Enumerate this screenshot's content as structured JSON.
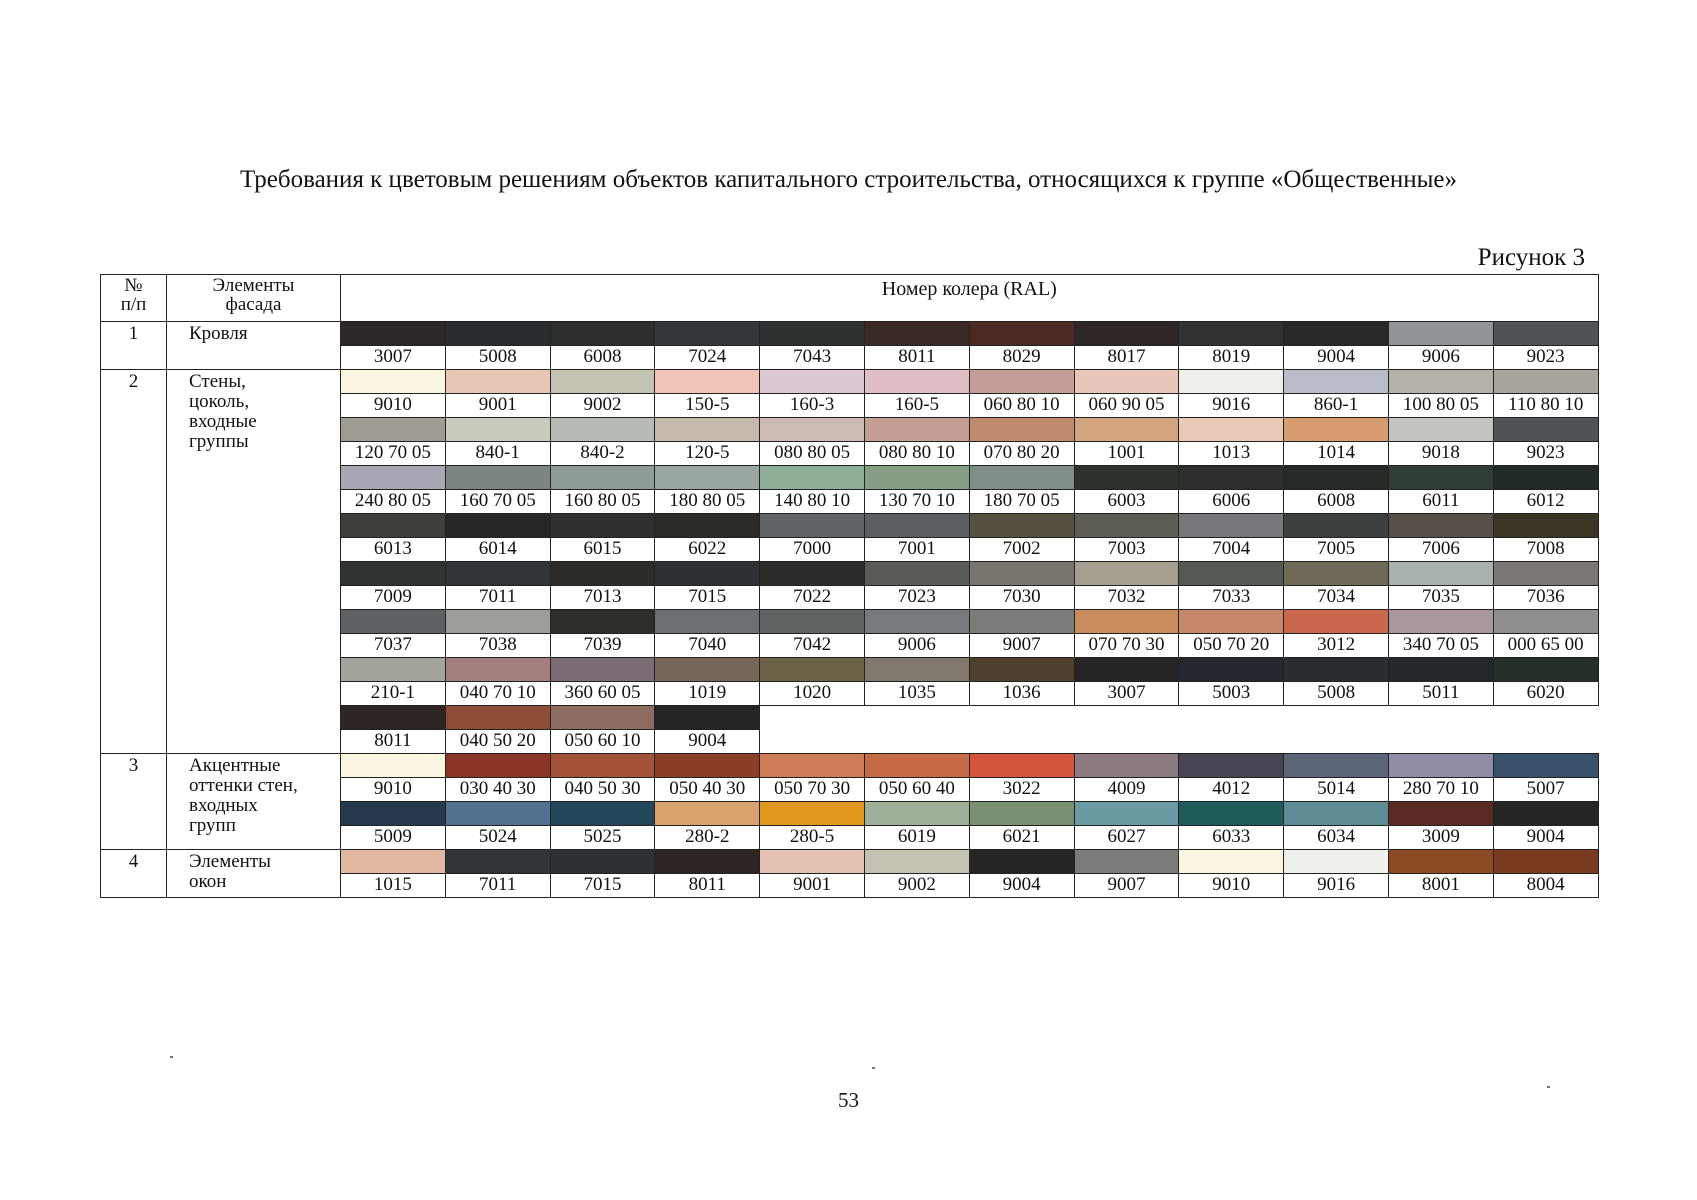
{
  "title": "Требования к цветовым решениям объектов капитального строительства, относящихся к группе «Общественные»",
  "figure_label": "Рисунок 3",
  "table": {
    "headers": {
      "num": "№\nп/п",
      "elements": "Элементы\nфасада",
      "ral": "Номер колера (RAL)"
    },
    "groups": [
      {
        "num": "1",
        "element": "Кровля",
        "rows": [
          {
            "codes": [
              "3007",
              "5008",
              "6008",
              "7024",
              "7043",
              "8011",
              "8029",
              "8017",
              "8019",
              "9004",
              "9006",
              "9023"
            ],
            "colors": [
              "#2c2626",
              "#2a2d30",
              "#2b2e2c",
              "#33363a",
              "#2e3132",
              "#3a2a26",
              "#4b2a24",
              "#2e2624",
              "#303133",
              "#282828",
              "#8f9497",
              "#4f5356"
            ]
          }
        ]
      },
      {
        "num": "2",
        "element": "Стены,\nцоколь,\nвходные\nгруппы",
        "rows": [
          {
            "codes": [
              "9010",
              "9001",
              "9002",
              "150-5",
              "160-3",
              "160-5",
              "060 80 10",
              "060 90 05",
              "9016",
              "860-1",
              "100 80 05",
              "110 80 10"
            ],
            "colors": [
              "#fbf6e2",
              "#e8c6b6",
              "#c4c2b3",
              "#f0c4b8",
              "#dbc8d3",
              "#e0bfc4",
              "#c59e98",
              "#e9c6b9",
              "#eef0ec",
              "#b9bcc9",
              "#b5b1a8",
              "#a8a59c"
            ]
          },
          {
            "codes": [
              "120 70 05",
              "840-1",
              "840-2",
              "120-5",
              "080 80 05",
              "080 80 10",
              "070 80 20",
              "1001",
              "1013",
              "1014",
              "9018",
              "9023"
            ],
            "colors": [
              "#9f9d93",
              "#c8ccbf",
              "#b7bcb5",
              "#c4b9ac",
              "#cdbab5",
              "#c59f93",
              "#c18b6f",
              "#d2a47f",
              "#e8c9b8",
              "#d79c6f",
              "#c3c6bf",
              "#4f5356"
            ]
          },
          {
            "codes": [
              "240 80 05",
              "160 70 05",
              "160 80 05",
              "180 80 05",
              "140 80 10",
              "130 70 10",
              "180 70 05",
              "6003",
              "6006",
              "6008",
              "6011",
              "6012"
            ],
            "colors": [
              "#a7a8b3",
              "#7d8581",
              "#8f9d98",
              "#9aa6a3",
              "#8fae98",
              "#869e86",
              "#7f8e86",
              "#2c332c",
              "#2c2f2c",
              "#262a27",
              "#2f3e32",
              "#222a27"
            ]
          },
          {
            "codes": [
              "6013",
              "6014",
              "6015",
              "6022",
              "7000",
              "7001",
              "7002",
              "7003",
              "7004",
              "7005",
              "7006",
              "7008"
            ],
            "colors": [
              "#3c4038",
              "#272725",
              "#2e312d",
              "#2c2a26",
              "#5e6468",
              "#5b5f62",
              "#55503f",
              "#5d5c55",
              "#76777a",
              "#3c403e",
              "#575048",
              "#3b3526"
            ]
          },
          {
            "codes": [
              "7009",
              "7011",
              "7013",
              "7015",
              "7022",
              "7023",
              "7030",
              "7032",
              "7033",
              "7034",
              "7035",
              "7036"
            ],
            "colors": [
              "#2f3431",
              "#303538",
              "#2d2c29",
              "#2e3134",
              "#2c2d2b",
              "#595c56",
              "#78766f",
              "#a59e91",
              "#535a51",
              "#6f6a58",
              "#a8b1ad",
              "#7c7775"
            ]
          },
          {
            "codes": [
              "7037",
              "7038",
              "7039",
              "7040",
              "7042",
              "9006",
              "9007",
              "070 70 30",
              "050 70 20",
              "3012",
              "340 70 05",
              "000 65 00"
            ],
            "colors": [
              "#5d6163",
              "#9c9e98",
              "#2f2d29",
              "#6b6f73",
              "#5f6364",
              "#767a7c",
              "#7b7c79",
              "#c98c5d",
              "#c7876a",
              "#c9674f",
              "#a9969e",
              "#8e8e8e"
            ]
          },
          {
            "codes": [
              "210-1",
              "040 70 10",
              "360 60 05",
              "1019",
              "1020",
              "1035",
              "1036",
              "3007",
              "5003",
              "5008",
              "5011",
              "6020"
            ],
            "colors": [
              "#a3a59d",
              "#a37e7c",
              "#7b6b74",
              "#75655a",
              "#6b6247",
              "#80786d",
              "#4d412d",
              "#262424",
              "#23282f",
              "#2a2d30",
              "#23282c",
              "#253029"
            ]
          },
          {
            "codes": [
              "8011",
              "040 50 20",
              "050 60 10",
              "9004"
            ],
            "colors": [
              "#2d2521",
              "#8d4d37",
              "#8f6c62",
              "#252525"
            ]
          }
        ]
      },
      {
        "num": "3",
        "element": "Акцентные\nоттенки стен,\nвходных\nгрупп",
        "rows": [
          {
            "codes": [
              "9010",
              "030 40 30",
              "040 50 30",
              "050 40 30",
              "050 70 30",
              "050 60 40",
              "3022",
              "4009",
              "4012",
              "5014",
              "280 70 10",
              "5007"
            ],
            "colors": [
              "#fbf6e2",
              "#8c3425",
              "#a45237",
              "#8b3e26",
              "#d07a58",
              "#c76a46",
              "#d4553c",
              "#8b7a80",
              "#474552",
              "#5c6478",
              "#908ca6",
              "#38506c"
            ]
          },
          {
            "codes": [
              "5009",
              "5024",
              "5025",
              "280-2",
              "280-5",
              "6019",
              "6021",
              "6027",
              "6033",
              "6034",
              "3009",
              "9004"
            ],
            "colors": [
              "#25384c",
              "#52708f",
              "#22475a",
              "#d8a36f",
              "#e2981f",
              "#9fb09a",
              "#7a9070",
              "#6a9ba2",
              "#1d5c5a",
              "#5f8b95",
              "#5a2a22",
              "#252525"
            ]
          }
        ]
      },
      {
        "num": "4",
        "element": "Элементы\nокон",
        "rows": [
          {
            "codes": [
              "1015",
              "7011",
              "7015",
              "8011",
              "9001",
              "9002",
              "9004",
              "9007",
              "9010",
              "9016",
              "8001",
              "8004"
            ],
            "colors": [
              "#e2b8a3",
              "#303538",
              "#2e3134",
              "#2d2521",
              "#e6c2b4",
              "#c4c2b3",
              "#252525",
              "#7b7c79",
              "#fbf6e2",
              "#eef0ec",
              "#8b4a22",
              "#7a3a1f"
            ]
          }
        ]
      }
    ]
  },
  "page_number": "53"
}
